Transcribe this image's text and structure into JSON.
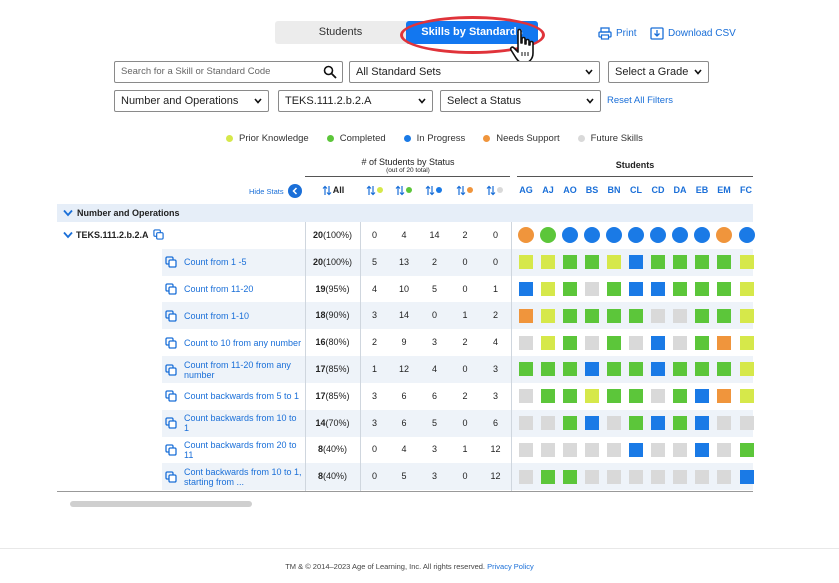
{
  "view_toggle": {
    "students_label": "Students",
    "skills_label": "Skills by Standards",
    "active": "Skills by Standards"
  },
  "actions": {
    "print_label": "Print",
    "download_label": "Download CSV"
  },
  "filters": {
    "search_placeholder": "Search for a Skill or Standard Code",
    "standard_sets": "All Standard Sets",
    "grade": "Select a Grade",
    "domain": "Number and Operations",
    "standard": "TEKS.111.2.b.2.A",
    "status": "Select a Status",
    "reset_label": "Reset All Filters"
  },
  "legend": [
    {
      "label": "Prior Knowledge",
      "color": "#d6e84a"
    },
    {
      "label": "Completed",
      "color": "#5cc63a"
    },
    {
      "label": "In Progress",
      "color": "#1a7ae6"
    },
    {
      "label": "Needs Support",
      "color": "#f0953c"
    },
    {
      "label": "Future Skills",
      "color": "#d9d9d9"
    }
  ],
  "colors": {
    "P": "#d6e84a",
    "C": "#5cc63a",
    "I": "#1a7ae6",
    "N": "#f0953c",
    "F": "#d9d9d9",
    "accent": "#1277f0"
  },
  "table": {
    "stats_title": "# of Students by Status",
    "stats_subtitle": "(out of 20 total)",
    "students_title": "Students",
    "hide_stats_label": "Hide Stats",
    "all_label": "All",
    "students": [
      "AG",
      "AJ",
      "AO",
      "BS",
      "BN",
      "CL",
      "CD",
      "DA",
      "EB",
      "EM",
      "FC"
    ],
    "group_label": "Number and Operations",
    "standard": {
      "label": "TEKS.111.2.b.2.A",
      "total": "20",
      "pct": "(100%)",
      "counts": [
        "0",
        "4",
        "14",
        "2",
        "0"
      ],
      "statuses": [
        "N",
        "C",
        "I",
        "I",
        "I",
        "I",
        "I",
        "I",
        "I",
        "N",
        "I"
      ]
    },
    "skills": [
      {
        "label": "Count from 1 -5",
        "total": "20",
        "pct": "(100%)",
        "counts": [
          "5",
          "13",
          "2",
          "0",
          "0"
        ],
        "statuses": [
          "P",
          "P",
          "C",
          "C",
          "P",
          "I",
          "C",
          "C",
          "C",
          "C",
          "P"
        ]
      },
      {
        "label": "Count from 11-20",
        "total": "19",
        "pct": "(95%)",
        "counts": [
          "4",
          "10",
          "5",
          "0",
          "1"
        ],
        "statuses": [
          "I",
          "P",
          "C",
          "F",
          "C",
          "I",
          "I",
          "C",
          "C",
          "C",
          "P"
        ]
      },
      {
        "label": "Count from 1-10",
        "total": "18",
        "pct": "(90%)",
        "counts": [
          "3",
          "14",
          "0",
          "1",
          "2"
        ],
        "statuses": [
          "N",
          "P",
          "C",
          "C",
          "C",
          "C",
          "F",
          "F",
          "C",
          "C",
          "P"
        ]
      },
      {
        "label": "Count to 10 from any number",
        "total": "16",
        "pct": "(80%)",
        "counts": [
          "2",
          "9",
          "3",
          "2",
          "4"
        ],
        "statuses": [
          "F",
          "P",
          "C",
          "F",
          "C",
          "F",
          "I",
          "F",
          "C",
          "N",
          "P"
        ]
      },
      {
        "label": "Count from 11-20 from any number",
        "total": "17",
        "pct": "(85%)",
        "counts": [
          "1",
          "12",
          "4",
          "0",
          "3"
        ],
        "statuses": [
          "C",
          "C",
          "C",
          "I",
          "C",
          "C",
          "I",
          "C",
          "C",
          "C",
          "P"
        ]
      },
      {
        "label": "Count backwards from 5 to 1",
        "total": "17",
        "pct": "(85%)",
        "counts": [
          "3",
          "6",
          "6",
          "2",
          "3"
        ],
        "statuses": [
          "F",
          "C",
          "C",
          "P",
          "C",
          "C",
          "F",
          "C",
          "I",
          "N",
          "P"
        ]
      },
      {
        "label": "Count backwards from 10 to 1",
        "total": "14",
        "pct": "(70%)",
        "counts": [
          "3",
          "6",
          "5",
          "0",
          "6"
        ],
        "statuses": [
          "F",
          "F",
          "C",
          "I",
          "F",
          "C",
          "I",
          "C",
          "I",
          "F",
          "F"
        ]
      },
      {
        "label": "Count backwards from 20 to 11",
        "total": "8",
        "pct": "(40%)",
        "counts": [
          "0",
          "4",
          "3",
          "1",
          "12"
        ],
        "statuses": [
          "F",
          "F",
          "F",
          "F",
          "F",
          "I",
          "F",
          "F",
          "I",
          "F",
          "C"
        ]
      },
      {
        "label": "Cont backwards from 10 to 1, starting from ...",
        "total": "8",
        "pct": "(40%)",
        "counts": [
          "0",
          "5",
          "3",
          "0",
          "12"
        ],
        "statuses": [
          "F",
          "C",
          "C",
          "F",
          "F",
          "F",
          "F",
          "F",
          "F",
          "F",
          "I"
        ]
      }
    ]
  },
  "footer": {
    "copyright": "TM & © 2014–2023 Age of Learning, Inc. All rights reserved.",
    "privacy_label": "Privacy Policy"
  }
}
